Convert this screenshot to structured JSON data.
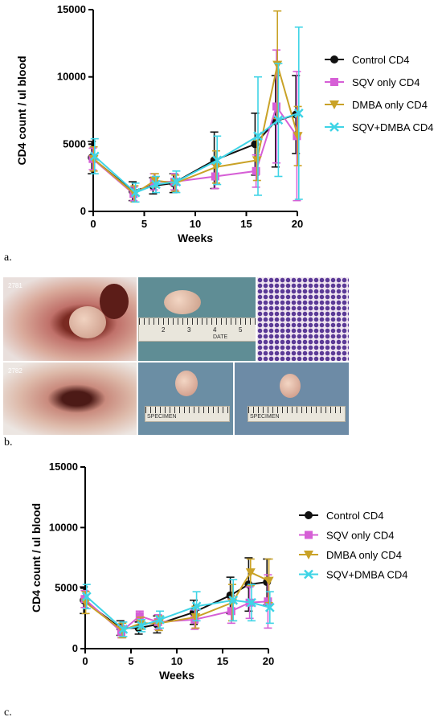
{
  "chart_data": [
    {
      "type": "line",
      "panel": "a",
      "xlabel": "Weeks",
      "ylabel": "CD4 count / ul blood",
      "xlim": [
        0,
        20
      ],
      "ylim": [
        0,
        15000
      ],
      "xticks": [
        0,
        5,
        10,
        15,
        20
      ],
      "yticks": [
        0,
        5000,
        10000,
        15000
      ],
      "legend_position": "right",
      "series": [
        {
          "name": "Control CD4",
          "color": "#111111",
          "marker": "circle",
          "x": [
            0,
            4,
            6,
            8,
            12,
            16,
            18,
            20
          ],
          "y": [
            4000,
            1500,
            1900,
            2100,
            3800,
            5000,
            6700,
            7200
          ],
          "err": [
            1200,
            700,
            600,
            700,
            2100,
            2300,
            3400,
            2900
          ]
        },
        {
          "name": "SQV only CD4",
          "color": "#d65fd6",
          "marker": "square",
          "x": [
            0,
            4,
            6,
            8,
            12,
            16,
            18,
            20
          ],
          "y": [
            3900,
            1300,
            2200,
            2200,
            2600,
            3000,
            7800,
            5600
          ],
          "err": [
            800,
            500,
            600,
            600,
            900,
            1200,
            4200,
            4800
          ]
        },
        {
          "name": "DMBA only CD4",
          "color": "#c9a227",
          "marker": "triangle-down",
          "x": [
            0,
            4,
            6,
            8,
            12,
            16,
            18,
            20
          ],
          "y": [
            3900,
            1300,
            2300,
            2100,
            3300,
            3800,
            10900,
            5600
          ],
          "err": [
            900,
            600,
            500,
            600,
            1200,
            1500,
            4000,
            2200
          ]
        },
        {
          "name": "SQV+DMBA CD4",
          "color": "#3fd4e6",
          "marker": "x",
          "x": [
            0,
            4,
            6,
            8,
            12,
            16,
            18,
            20
          ],
          "y": [
            4100,
            1400,
            2000,
            2200,
            3800,
            5600,
            6800,
            7300
          ],
          "err": [
            1300,
            700,
            600,
            800,
            1800,
            4400,
            4200,
            6400
          ]
        }
      ]
    },
    {
      "type": "line",
      "panel": "c",
      "xlabel": "Weeks",
      "ylabel": "CD4 count / ul blood",
      "xlim": [
        0,
        20
      ],
      "ylim": [
        0,
        15000
      ],
      "xticks": [
        0,
        5,
        10,
        15,
        20
      ],
      "yticks": [
        0,
        5000,
        10000,
        15000
      ],
      "legend_position": "right",
      "series": [
        {
          "name": "Control CD4",
          "color": "#111111",
          "marker": "circle",
          "x": [
            0,
            4,
            6,
            8,
            12,
            16,
            18,
            20
          ],
          "y": [
            4000,
            1700,
            1700,
            2000,
            3000,
            4400,
            5300,
            5500
          ],
          "err": [
            1100,
            600,
            500,
            700,
            1000,
            1500,
            2200,
            1900
          ]
        },
        {
          "name": "SQV only CD4",
          "color": "#d65fd6",
          "marker": "square",
          "x": [
            0,
            4,
            6,
            8,
            12,
            16,
            18,
            20
          ],
          "y": [
            4100,
            1400,
            2700,
            2200,
            2400,
            3100,
            3800,
            3900
          ],
          "err": [
            700,
            500,
            400,
            600,
            800,
            1000,
            1300,
            2200
          ]
        },
        {
          "name": "DMBA only CD4",
          "color": "#c9a227",
          "marker": "triangle-down",
          "x": [
            0,
            4,
            6,
            8,
            12,
            16,
            18,
            20
          ],
          "y": [
            3800,
            1500,
            2100,
            2100,
            2600,
            3800,
            6300,
            5600
          ],
          "err": [
            900,
            600,
            500,
            600,
            900,
            1500,
            1100,
            1800
          ]
        },
        {
          "name": "SQV+DMBA CD4",
          "color": "#3fd4e6",
          "marker": "x",
          "x": [
            0,
            4,
            6,
            8,
            12,
            16,
            18,
            20
          ],
          "y": [
            4300,
            1600,
            1900,
            2400,
            3500,
            4000,
            3800,
            3400
          ],
          "err": [
            1000,
            600,
            500,
            700,
            1200,
            1700,
            1500,
            1300
          ]
        }
      ]
    }
  ],
  "panel_labels": {
    "a": "a.",
    "b": "b.",
    "c": "c."
  },
  "photos": {
    "id_top": "2781",
    "id_bottom": "2782",
    "ruler_date": "DATE",
    "ruler_specimen": "SPECIMEN",
    "ruler_numbers": [
      "2",
      "3",
      "4",
      "5"
    ]
  }
}
